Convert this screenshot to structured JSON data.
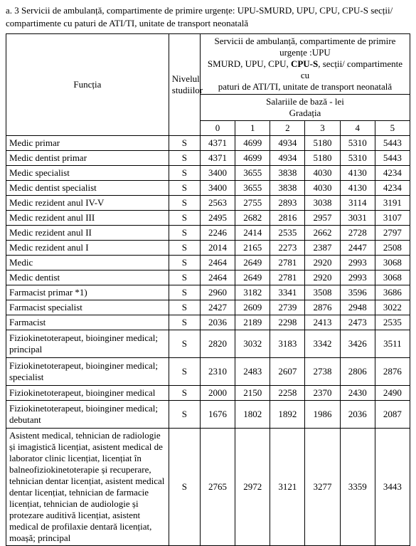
{
  "caption": "a. 3 Servicii de ambulanță, compartimente de primire urgențe: UPU-SMURD, UPU, CPU, CPU-S secții/ compartimente cu paturi de ATI/TI, unitate de transport neonatală",
  "header": {
    "functia": "Funcția",
    "nivel": "Nivelul studiilor",
    "group_line1": "Servicii de ambulanță, compartimente de primire urgențe :UPU",
    "group_line2_a": "SMURD, UPU, CPU,  ",
    "group_line2_bold": "CPU-S",
    "group_line2_b": ", secții/ compartimente cu",
    "group_line3": "paturi de ATI/TI, unitate de transport neonatală",
    "sal_line1": "Salariile de bază - lei",
    "sal_line2": "Gradația",
    "g0": "0",
    "g1": "1",
    "g2": "2",
    "g3": "3",
    "g4": "4",
    "g5": "5"
  },
  "rows": [
    {
      "f": "Medic primar",
      "n": "S",
      "v": [
        "4371",
        "4699",
        "4934",
        "5180",
        "5310",
        "5443"
      ]
    },
    {
      "f": "Medic dentist primar",
      "n": "S",
      "v": [
        "4371",
        "4699",
        "4934",
        "5180",
        "5310",
        "5443"
      ]
    },
    {
      "f": "Medic specialist",
      "n": "S",
      "v": [
        "3400",
        "3655",
        "3838",
        "4030",
        "4130",
        "4234"
      ]
    },
    {
      "f": "Medic dentist specialist",
      "n": "S",
      "v": [
        "3400",
        "3655",
        "3838",
        "4030",
        "4130",
        "4234"
      ]
    },
    {
      "f": "Medic rezident anul IV-V",
      "n": "S",
      "v": [
        "2563",
        "2755",
        "2893",
        "3038",
        "3114",
        "3191"
      ]
    },
    {
      "f": "Medic rezident anul III",
      "n": "S",
      "v": [
        "2495",
        "2682",
        "2816",
        "2957",
        "3031",
        "3107"
      ]
    },
    {
      "f": "Medic rezident anul II",
      "n": "S",
      "v": [
        "2246",
        "2414",
        "2535",
        "2662",
        "2728",
        "2797"
      ]
    },
    {
      "f": "Medic rezident anul I",
      "n": "S",
      "v": [
        "2014",
        "2165",
        "2273",
        "2387",
        "2447",
        "2508"
      ]
    },
    {
      "f": "Medic",
      "n": "S",
      "v": [
        "2464",
        "2649",
        "2781",
        "2920",
        "2993",
        "3068"
      ]
    },
    {
      "f": "Medic dentist",
      "n": "S",
      "v": [
        "2464",
        "2649",
        "2781",
        "2920",
        "2993",
        "3068"
      ]
    },
    {
      "f": "Farmacist primar *1)",
      "n": "S",
      "v": [
        "2960",
        "3182",
        "3341",
        "3508",
        "3596",
        "3686"
      ]
    },
    {
      "f": "Farmacist specialist",
      "n": "S",
      "v": [
        "2427",
        "2609",
        "2739",
        "2876",
        "2948",
        "3022"
      ]
    },
    {
      "f": "Farmacist",
      "n": "S",
      "v": [
        "2036",
        "2189",
        "2298",
        "2413",
        "2473",
        "2535"
      ]
    },
    {
      "f": "Fiziokinetoterapeut, bioinginer medical; principal",
      "n": "S",
      "v": [
        "2820",
        "3032",
        "3183",
        "3342",
        "3426",
        "3511"
      ],
      "tall": true
    },
    {
      "f": "Fiziokinetoterapeut, bioinginer medical; specialist",
      "n": "S",
      "v": [
        "2310",
        "2483",
        "2607",
        "2738",
        "2806",
        "2876"
      ],
      "tall": true
    },
    {
      "f": "Fiziokinetoterapeut, bioinginer medical",
      "n": "S",
      "v": [
        "2000",
        "2150",
        "2258",
        "2370",
        "2430",
        "2490"
      ]
    },
    {
      "f": "Fiziokinetoterapeut, bioinginer medical; debutant",
      "n": "S",
      "v": [
        "1676",
        "1802",
        "1892",
        "1986",
        "2036",
        "2087"
      ],
      "tall": true
    },
    {
      "f": "Asistent medical, tehnician de radiologie și imagistică licențiat, asistent medical de laborator clinic licențiat, licențiat în balneofiziokinetoterapie și recuperare, tehnician dentar licențiat, asistent medical dentar licențiat, tehnician de farmacie licențiat, tehnician de audiologie și protezare auditivă licențiat, asistent medical de profilaxie dentară licențiat, moașă; principal",
      "n": "S",
      "v": [
        "2765",
        "2972",
        "3121",
        "3277",
        "3359",
        "3443"
      ],
      "xtall": true
    }
  ]
}
